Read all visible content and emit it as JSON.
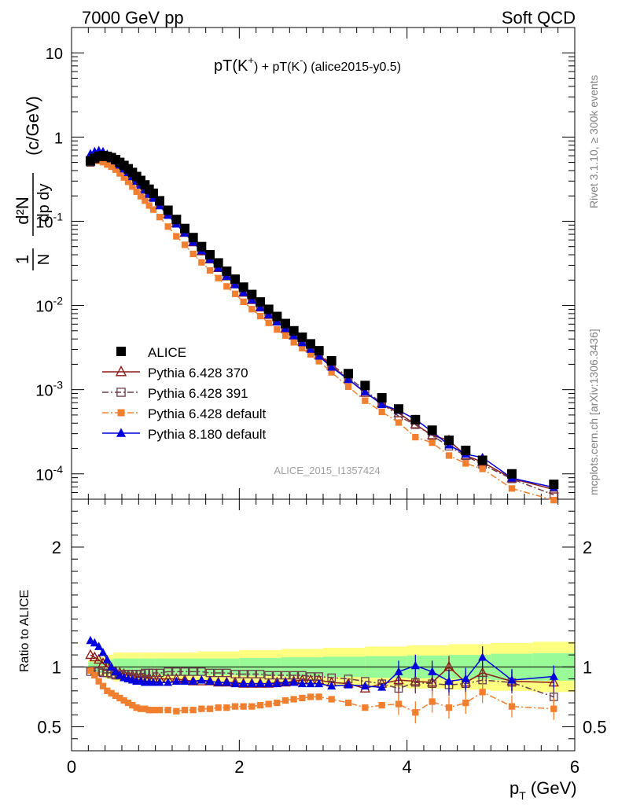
{
  "header": {
    "left": "7000 GeV pp",
    "right": "Soft QCD"
  },
  "side_labels": {
    "rivet": "Rivet 3.1.10, ≥ 300k events",
    "mcplots": "mcplots.cern.ch [arXiv:1306.3436]"
  },
  "watermark": "ALICE_2015_I1357424",
  "main_title": {
    "a": "pT(K",
    "a_sup": "+",
    "b": ") + pT(K",
    "b_sup": "-",
    "c": ") (alice2015-y0.5)"
  },
  "axes": {
    "y_top_label": "(c/GeV)",
    "y_bottom_label": "Ratio to ALICE",
    "x_label": "p",
    "x_label_sub": "T",
    "x_label_unit": "(GeV)"
  },
  "colors": {
    "alice": "#000000",
    "p370": "#8b1a1a",
    "p391": "#6b3b4b",
    "p6def": "#f08030",
    "p8def": "#0000dd",
    "band_yellow": "#ffff80",
    "band_green": "#98fb98"
  },
  "chart_data": [
    {
      "type": "scatter",
      "panel": "spectrum",
      "y_scale": "log",
      "xlim": [
        0,
        6.0
      ],
      "ylim": [
        5e-05,
        20
      ],
      "x_ticks": [
        0,
        2,
        4,
        6
      ],
      "y_ticks": [
        {
          "v": 0.0001,
          "m": "10",
          "e": "-4"
        },
        {
          "v": 0.001,
          "m": "10",
          "e": "-3"
        },
        {
          "v": 0.01,
          "m": "10",
          "e": "-2"
        },
        {
          "v": 0.1,
          "m": "10",
          "e": "-1"
        },
        {
          "v": 1,
          "m": "1",
          "e": ""
        },
        {
          "v": 10,
          "m": "10",
          "e": ""
        }
      ],
      "x": [
        0.225,
        0.275,
        0.325,
        0.375,
        0.425,
        0.475,
        0.525,
        0.575,
        0.625,
        0.675,
        0.725,
        0.775,
        0.825,
        0.875,
        0.925,
        0.975,
        1.05,
        1.15,
        1.25,
        1.35,
        1.45,
        1.55,
        1.65,
        1.75,
        1.85,
        1.95,
        2.05,
        2.15,
        2.25,
        2.35,
        2.45,
        2.55,
        2.65,
        2.75,
        2.85,
        2.95,
        3.1,
        3.3,
        3.5,
        3.7,
        3.9,
        4.1,
        4.3,
        4.5,
        4.7,
        4.9,
        5.25,
        5.75
      ],
      "legend": [
        {
          "key": "alice",
          "label": "ALICE",
          "marker": "square-filled",
          "line": "none"
        },
        {
          "key": "p370",
          "label": "Pythia 6.428 370",
          "marker": "triangle-open",
          "line": "solid"
        },
        {
          "key": "p391",
          "label": "Pythia 6.428 391",
          "marker": "square-open",
          "line": "dashdot"
        },
        {
          "key": "p6def",
          "label": "Pythia 6.428 default",
          "marker": "square-filled-small",
          "line": "dashdot"
        },
        {
          "key": "p8def",
          "label": "Pythia 8.180 default",
          "marker": "triangle-filled",
          "line": "solid"
        }
      ],
      "alice": [
        0.52,
        0.56,
        0.59,
        0.6,
        0.59,
        0.57,
        0.54,
        0.5,
        0.46,
        0.42,
        0.38,
        0.34,
        0.305,
        0.27,
        0.24,
        0.215,
        0.175,
        0.135,
        0.105,
        0.082,
        0.064,
        0.05,
        0.04,
        0.032,
        0.0255,
        0.0205,
        0.0165,
        0.0135,
        0.011,
        0.009,
        0.0074,
        0.0061,
        0.005,
        0.0042,
        0.0035,
        0.0029,
        0.0022,
        0.00155,
        0.00112,
        0.0008,
        0.00059,
        0.00044,
        0.00033,
        0.00025,
        0.00019,
        0.000145,
        0.0001,
        7.5e-05
      ]
    },
    {
      "type": "line",
      "panel": "ratio",
      "xlim": [
        0,
        6.0
      ],
      "ylim": [
        0.3,
        2.4
      ],
      "x_ticks": [
        0,
        2,
        4,
        6
      ],
      "y_ticks": [
        0.5,
        1,
        2
      ],
      "x": [
        0.225,
        0.275,
        0.325,
        0.375,
        0.425,
        0.475,
        0.525,
        0.575,
        0.625,
        0.675,
        0.725,
        0.775,
        0.825,
        0.875,
        0.925,
        0.975,
        1.05,
        1.15,
        1.25,
        1.35,
        1.45,
        1.55,
        1.65,
        1.75,
        1.85,
        1.95,
        2.05,
        2.15,
        2.25,
        2.35,
        2.45,
        2.55,
        2.65,
        2.75,
        2.85,
        2.95,
        3.1,
        3.3,
        3.5,
        3.7,
        3.9,
        4.1,
        4.3,
        4.5,
        4.7,
        4.9,
        5.25,
        5.75
      ],
      "band_edges": [
        0.2,
        0.3,
        0.4,
        0.5,
        0.6,
        0.8,
        1.0,
        1.5,
        2.0,
        2.5,
        3.0,
        3.5,
        4.0,
        4.5,
        5.0,
        5.5,
        6.0
      ],
      "band_stat": [
        0.04,
        0.05,
        0.06,
        0.07,
        0.07,
        0.07,
        0.07,
        0.07,
        0.075,
        0.08,
        0.085,
        0.09,
        0.095,
        0.1,
        0.11,
        0.115
      ],
      "band_total": [
        0.06,
        0.08,
        0.1,
        0.12,
        0.12,
        0.12,
        0.12,
        0.13,
        0.14,
        0.15,
        0.16,
        0.17,
        0.18,
        0.19,
        0.2,
        0.21
      ],
      "series": [
        {
          "key": "p370",
          "values": [
            1.1,
            1.08,
            1.06,
            1.03,
            1.0,
            0.98,
            0.96,
            0.95,
            0.94,
            0.93,
            0.93,
            0.92,
            0.92,
            0.91,
            0.91,
            0.9,
            0.9,
            0.9,
            0.9,
            0.89,
            0.88,
            0.88,
            0.88,
            0.87,
            0.87,
            0.87,
            0.86,
            0.86,
            0.86,
            0.86,
            0.87,
            0.87,
            0.88,
            0.89,
            0.89,
            0.89,
            0.87,
            0.86,
            0.82,
            0.86,
            0.89,
            0.88,
            0.87,
            1.0,
            0.87,
            0.95,
            0.88,
            0.87
          ]
        },
        {
          "key": "p391",
          "values": [
            0.96,
            0.97,
            0.96,
            0.95,
            0.95,
            0.94,
            0.93,
            0.93,
            0.94,
            0.94,
            0.94,
            0.94,
            0.94,
            0.95,
            0.95,
            0.95,
            0.95,
            0.96,
            0.96,
            0.96,
            0.96,
            0.96,
            0.95,
            0.95,
            0.95,
            0.94,
            0.94,
            0.94,
            0.94,
            0.93,
            0.93,
            0.93,
            0.93,
            0.93,
            0.92,
            0.92,
            0.91,
            0.9,
            0.88,
            0.86,
            0.82,
            0.87,
            0.86,
            0.85,
            0.86,
            0.89,
            0.87,
            0.75
          ]
        },
        {
          "key": "p6def",
          "values": [
            0.97,
            0.93,
            0.88,
            0.84,
            0.8,
            0.78,
            0.76,
            0.74,
            0.72,
            0.7,
            0.68,
            0.66,
            0.65,
            0.65,
            0.64,
            0.64,
            0.64,
            0.64,
            0.63,
            0.64,
            0.64,
            0.65,
            0.65,
            0.66,
            0.66,
            0.67,
            0.67,
            0.67,
            0.68,
            0.69,
            0.7,
            0.72,
            0.73,
            0.74,
            0.75,
            0.75,
            0.73,
            0.7,
            0.66,
            0.68,
            0.69,
            0.62,
            0.71,
            0.66,
            0.7,
            0.79,
            0.67,
            0.65
          ]
        },
        {
          "key": "p8def",
          "values": [
            1.22,
            1.2,
            1.17,
            1.12,
            1.06,
            1.0,
            0.96,
            0.93,
            0.91,
            0.9,
            0.89,
            0.88,
            0.88,
            0.87,
            0.87,
            0.87,
            0.87,
            0.87,
            0.88,
            0.88,
            0.88,
            0.89,
            0.88,
            0.87,
            0.87,
            0.86,
            0.86,
            0.86,
            0.86,
            0.86,
            0.86,
            0.87,
            0.87,
            0.86,
            0.86,
            0.86,
            0.84,
            0.85,
            0.84,
            0.83,
            0.96,
            1.01,
            0.96,
            0.88,
            0.9,
            1.08,
            0.89,
            0.92
          ]
        }
      ]
    }
  ]
}
